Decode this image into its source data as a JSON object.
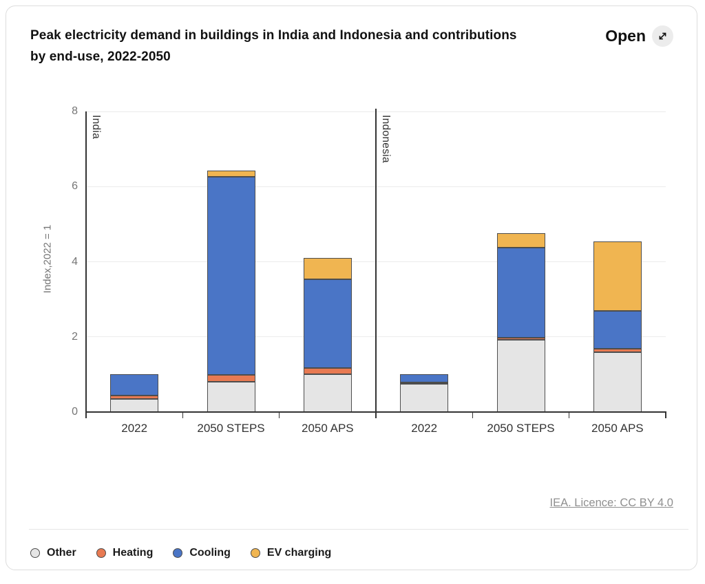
{
  "header": {
    "title_line1": "Peak electricity demand in buildings in India and Indonesia and contributions",
    "title_line2": "by end-use, 2022-2050",
    "open_label": "Open",
    "open_icon": "expand-diagonal-arrow-icon"
  },
  "footer": {
    "licence_link": "IEA. Licence: CC BY 4.0"
  },
  "colors": {
    "other": "#e5e5e5",
    "heating": "#e87a52",
    "cooling": "#4a75c6",
    "ev_charging": "#f0b551",
    "segment_outline": "#4d4d4d",
    "axis": "#333333",
    "gridline": "#ebebeb"
  },
  "chart_data": {
    "type": "bar",
    "stacked": true,
    "title": "Peak electricity demand in buildings in India and Indonesia and contributions by end-use, 2022-2050",
    "ylabel": "Index,2022 = 1",
    "ylim": [
      0,
      8
    ],
    "yticks": [
      0,
      2,
      4,
      6,
      8
    ],
    "grid": "horizontal",
    "legend_position": "bottom-left",
    "panels": [
      {
        "label": "India",
        "categories": [
          "2022",
          "2050 STEPS",
          "2050 APS"
        ]
      },
      {
        "label": "Indonesia",
        "categories": [
          "2022",
          "2050 STEPS",
          "2050 APS"
        ]
      }
    ],
    "categories": [
      "India 2022",
      "India 2050 STEPS",
      "India 2050 APS",
      "Indonesia 2022",
      "Indonesia 2050 STEPS",
      "Indonesia 2050 APS"
    ],
    "series": [
      {
        "name": "Other",
        "color": "#e5e5e5",
        "values": [
          0.35,
          0.8,
          1.0,
          0.76,
          1.93,
          1.6
        ]
      },
      {
        "name": "Heating",
        "color": "#e87a52",
        "values": [
          0.09,
          0.18,
          0.18,
          0.03,
          0.05,
          0.09
        ]
      },
      {
        "name": "Cooling",
        "color": "#4a75c6",
        "values": [
          0.56,
          5.29,
          2.36,
          0.21,
          2.4,
          1.01
        ]
      },
      {
        "name": "EV charging",
        "color": "#f0b551",
        "values": [
          0.0,
          0.16,
          0.57,
          0.0,
          0.39,
          1.85
        ]
      }
    ]
  }
}
